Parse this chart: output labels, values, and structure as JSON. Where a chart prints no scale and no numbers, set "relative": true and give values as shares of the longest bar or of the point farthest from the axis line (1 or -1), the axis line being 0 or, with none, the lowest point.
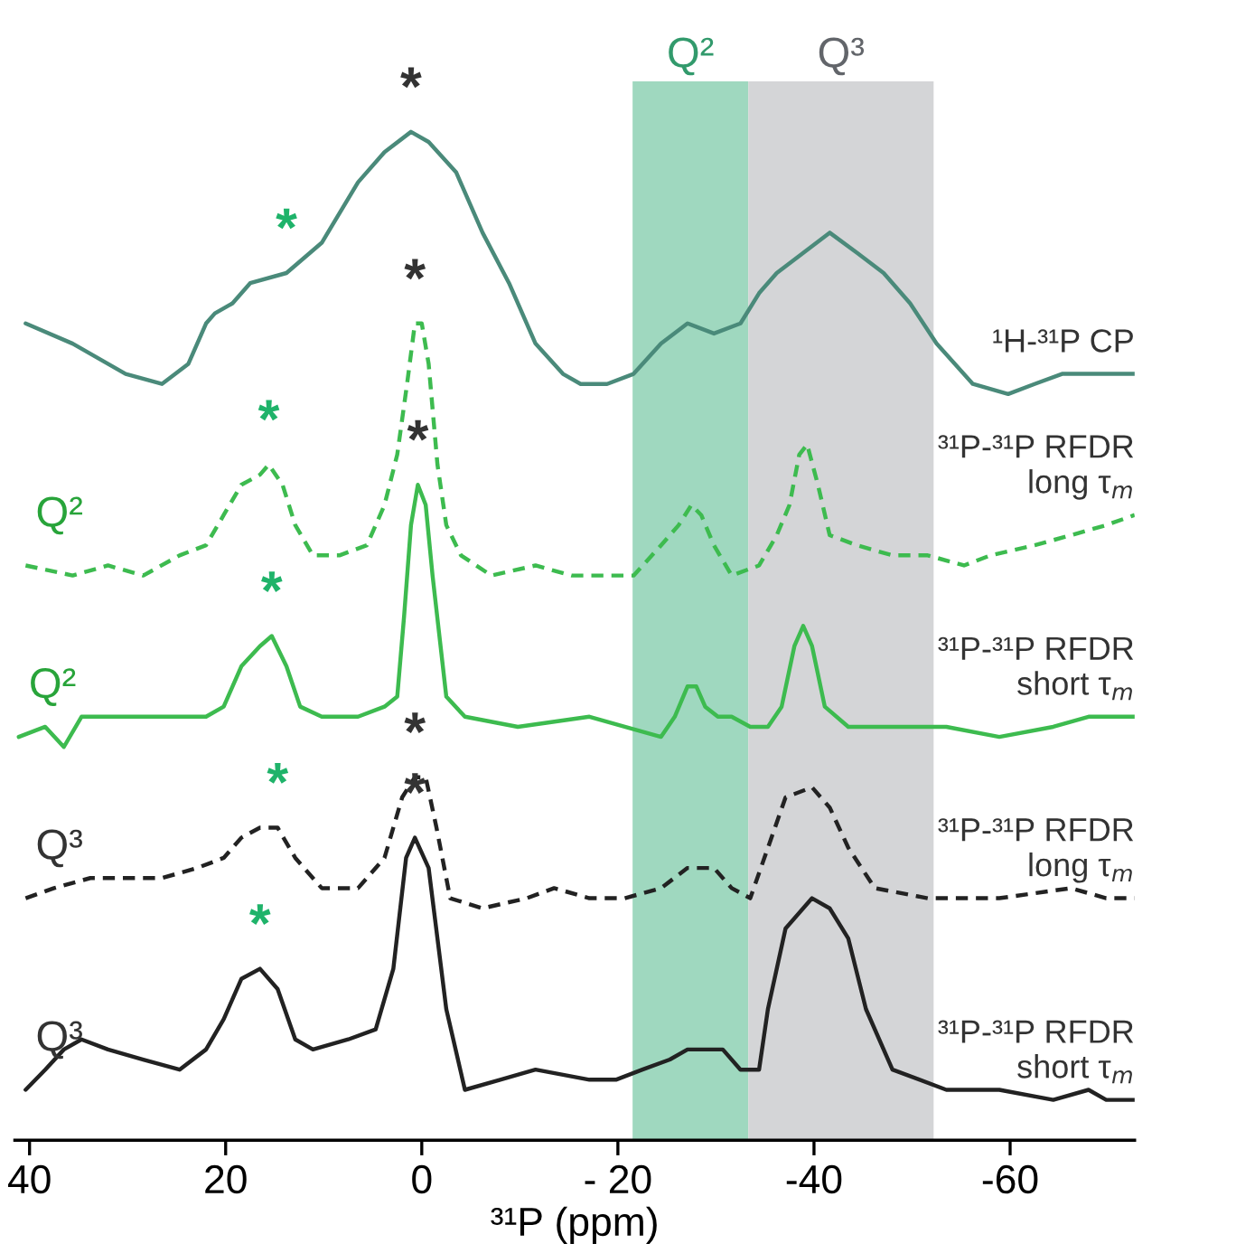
{
  "chart_data": {
    "type": "line",
    "relative": true,
    "xlabel": "³¹P (ppm)",
    "xlim": [
      41.5,
      -72.7
    ],
    "xticks": [
      40,
      20,
      0,
      {
        "value": -20,
        "label": "- 20"
      },
      -40,
      -60
    ],
    "tick_labels": "x",
    "grid": false,
    "legend": false,
    "marker": "none",
    "bands": [
      {
        "axis": "x",
        "from": -21.5,
        "to": -33.3,
        "label": "Q²",
        "color": "#9fd8bf"
      },
      {
        "axis": "x",
        "from": -33.3,
        "to": -52.2,
        "label": "Q³",
        "color": "#d4d5d7"
      }
    ],
    "series": [
      {
        "name": "¹H-³¹P CP",
        "color": "#4a8a7a",
        "line_style": "solid",
        "x": [
          40.4,
          35.6,
          30.2,
          26.5,
          23.8,
          22.0,
          21.1,
          19.3,
          17.5,
          13.8,
          10.2,
          6.5,
          3.8,
          1.1,
          -0.7,
          -3.5,
          -6.2,
          -8.9,
          -11.6,
          -14.4,
          -16.2,
          -18.9,
          -21.6,
          -24.4,
          -27.1,
          -29.8,
          -32.5,
          -34.4,
          -36.2,
          -38.9,
          -41.6,
          -44.4,
          -47.1,
          -49.8,
          -52.5,
          -56.2,
          -59.8,
          -62.5,
          -65.3,
          -68.0,
          -70.7,
          -72.7
        ],
        "values": [
          0.81,
          0.79,
          0.76,
          0.75,
          0.77,
          0.81,
          0.82,
          0.83,
          0.85,
          0.86,
          0.89,
          0.95,
          0.98,
          1.0,
          0.99,
          0.96,
          0.9,
          0.85,
          0.79,
          0.76,
          0.75,
          0.75,
          0.76,
          0.79,
          0.81,
          0.8,
          0.81,
          0.84,
          0.86,
          0.88,
          0.9,
          0.88,
          0.86,
          0.83,
          0.79,
          0.75,
          0.74,
          0.75,
          0.76,
          0.76,
          0.76,
          0.76
        ]
      },
      {
        "name": "³¹P-³¹P RFDR\nlong τ$_{m}$",
        "color": "#3dbb4f",
        "line_style": "dashed",
        "x": [
          40.4,
          35.6,
          32.0,
          28.4,
          24.7,
          22.0,
          20.2,
          18.4,
          16.5,
          15.6,
          14.2,
          12.9,
          11.1,
          8.4,
          5.6,
          3.8,
          2.5,
          1.5,
          0.7,
          0,
          -0.7,
          -1.6,
          -2.5,
          -4.0,
          -7.1,
          -11.6,
          -15.3,
          -18.9,
          -21.6,
          -24.4,
          -26.2,
          -27.5,
          -28.5,
          -29.8,
          -31.6,
          -34.4,
          -36.2,
          -37.5,
          -38.5,
          -39.3,
          -40.4,
          -41.6,
          -44.4,
          -48.0,
          -51.6,
          -55.3,
          -58.0,
          -62.5,
          -66.2,
          -69.8,
          -72.7
        ],
        "values": [
          0.57,
          0.56,
          0.57,
          0.56,
          0.58,
          0.59,
          0.62,
          0.65,
          0.66,
          0.67,
          0.65,
          0.61,
          0.58,
          0.58,
          0.59,
          0.63,
          0.68,
          0.75,
          0.81,
          0.81,
          0.77,
          0.67,
          0.61,
          0.58,
          0.56,
          0.57,
          0.56,
          0.56,
          0.56,
          0.59,
          0.61,
          0.63,
          0.62,
          0.59,
          0.56,
          0.57,
          0.6,
          0.63,
          0.68,
          0.69,
          0.65,
          0.6,
          0.59,
          0.58,
          0.58,
          0.57,
          0.58,
          0.59,
          0.6,
          0.61,
          0.62
        ]
      },
      {
        "name": "³¹P-³¹P RFDR\nshort τ$_{m}$",
        "color": "#3dbb4f",
        "line_style": "solid",
        "x": [
          41.1,
          38.4,
          36.5,
          34.7,
          30.2,
          24.7,
          22.0,
          20.2,
          18.4,
          16.5,
          15.3,
          13.8,
          12.4,
          10.2,
          6.5,
          3.8,
          2.5,
          1.8,
          1.1,
          0.4,
          -0.4,
          -1.1,
          -2.5,
          -4.4,
          -9.8,
          -17.1,
          -20.7,
          -24.4,
          -25.8,
          -27.1,
          -28.0,
          -28.9,
          -30.2,
          -31.6,
          -33.5,
          -35.3,
          -36.7,
          -38.0,
          -38.9,
          -39.8,
          -41.1,
          -43.5,
          -48.0,
          -53.5,
          -58.9,
          -64.4,
          -68.0,
          -71.6,
          -72.7
        ],
        "values": [
          0.4,
          0.41,
          0.39,
          0.42,
          0.42,
          0.42,
          0.42,
          0.43,
          0.47,
          0.49,
          0.5,
          0.47,
          0.43,
          0.42,
          0.42,
          0.43,
          0.44,
          0.52,
          0.61,
          0.65,
          0.63,
          0.56,
          0.44,
          0.42,
          0.41,
          0.42,
          0.41,
          0.4,
          0.42,
          0.45,
          0.45,
          0.43,
          0.42,
          0.42,
          0.41,
          0.41,
          0.43,
          0.49,
          0.51,
          0.49,
          0.43,
          0.41,
          0.41,
          0.41,
          0.4,
          0.41,
          0.42,
          0.42,
          0.42
        ]
      },
      {
        "name": "³¹P-³¹P RFDR\nlong τ$_{m}$",
        "color": "#222222",
        "line_style": "dashed",
        "x": [
          40.4,
          37.5,
          33.8,
          30.2,
          26.5,
          22.9,
          20.2,
          18.4,
          16.5,
          14.7,
          12.9,
          10.2,
          6.5,
          3.8,
          2.0,
          0.7,
          -0.4,
          -1.5,
          -2.9,
          -6.2,
          -10.7,
          -13.5,
          -17.1,
          -20.7,
          -24.4,
          -27.1,
          -29.8,
          -31.6,
          -33.5,
          -35.3,
          -37.1,
          -39.8,
          -41.6,
          -43.5,
          -46.2,
          -51.6,
          -58.9,
          -66.2,
          -69.8,
          -72.7
        ],
        "values": [
          0.24,
          0.25,
          0.26,
          0.26,
          0.26,
          0.27,
          0.28,
          0.3,
          0.31,
          0.31,
          0.28,
          0.25,
          0.25,
          0.28,
          0.34,
          0.36,
          0.36,
          0.31,
          0.24,
          0.23,
          0.24,
          0.25,
          0.24,
          0.24,
          0.25,
          0.27,
          0.27,
          0.25,
          0.24,
          0.29,
          0.34,
          0.35,
          0.33,
          0.29,
          0.25,
          0.24,
          0.24,
          0.25,
          0.24,
          0.24
        ]
      },
      {
        "name": "³¹P-³¹P RFDR\nshort τ$_{m}$",
        "color": "#222222",
        "line_style": "solid",
        "x": [
          40.4,
          38.4,
          36.5,
          34.7,
          32.0,
          28.4,
          24.7,
          22.0,
          20.2,
          18.4,
          16.5,
          14.7,
          12.9,
          11.1,
          7.5,
          4.7,
          2.9,
          1.6,
          0.7,
          -0.7,
          -2.5,
          -4.4,
          -8.0,
          -11.6,
          -17.1,
          -19.8,
          -22.5,
          -25.3,
          -27.1,
          -28.9,
          -30.7,
          -32.5,
          -34.4,
          -35.3,
          -37.1,
          -39.8,
          -41.6,
          -43.5,
          -45.3,
          -48.0,
          -53.5,
          -58.9,
          -64.4,
          -68.0,
          -69.8,
          -72.7
        ],
        "values": [
          0.05,
          0.07,
          0.09,
          0.1,
          0.09,
          0.08,
          0.07,
          0.09,
          0.12,
          0.16,
          0.17,
          0.15,
          0.1,
          0.09,
          0.1,
          0.11,
          0.17,
          0.28,
          0.3,
          0.27,
          0.13,
          0.05,
          0.06,
          0.07,
          0.06,
          0.06,
          0.07,
          0.08,
          0.09,
          0.09,
          0.09,
          0.07,
          0.07,
          0.13,
          0.21,
          0.24,
          0.23,
          0.2,
          0.13,
          0.07,
          0.05,
          0.05,
          0.04,
          0.05,
          0.04,
          0.04
        ]
      }
    ],
    "annotations": [
      {
        "text": "*",
        "x": 1.1,
        "y": 1.0
      },
      {
        "text": "*",
        "x": 13.8,
        "y": 0.86
      },
      {
        "text": "*",
        "x": 0.7,
        "y": 0.81
      },
      {
        "text": "*",
        "x": 15.6,
        "y": 0.67
      },
      {
        "text": "*",
        "x": 0.4,
        "y": 0.65
      },
      {
        "text": "*",
        "x": 15.3,
        "y": 0.5
      },
      {
        "text": "*",
        "x": 0.7,
        "y": 0.36
      },
      {
        "text": "*",
        "x": 14.7,
        "y": 0.31
      },
      {
        "text": "*",
        "x": 0.7,
        "y": 0.3
      },
      {
        "text": "*",
        "x": 16.5,
        "y": 0.17
      },
      {
        "text": "Q²",
        "x": 40.4,
        "y": 0.57
      },
      {
        "text": "Q²",
        "x": 41.1,
        "y": 0.4
      },
      {
        "text": "Q³",
        "x": 40.4,
        "y": 0.24
      },
      {
        "text": "Q³",
        "x": 40.4,
        "y": 0.05
      }
    ]
  }
}
